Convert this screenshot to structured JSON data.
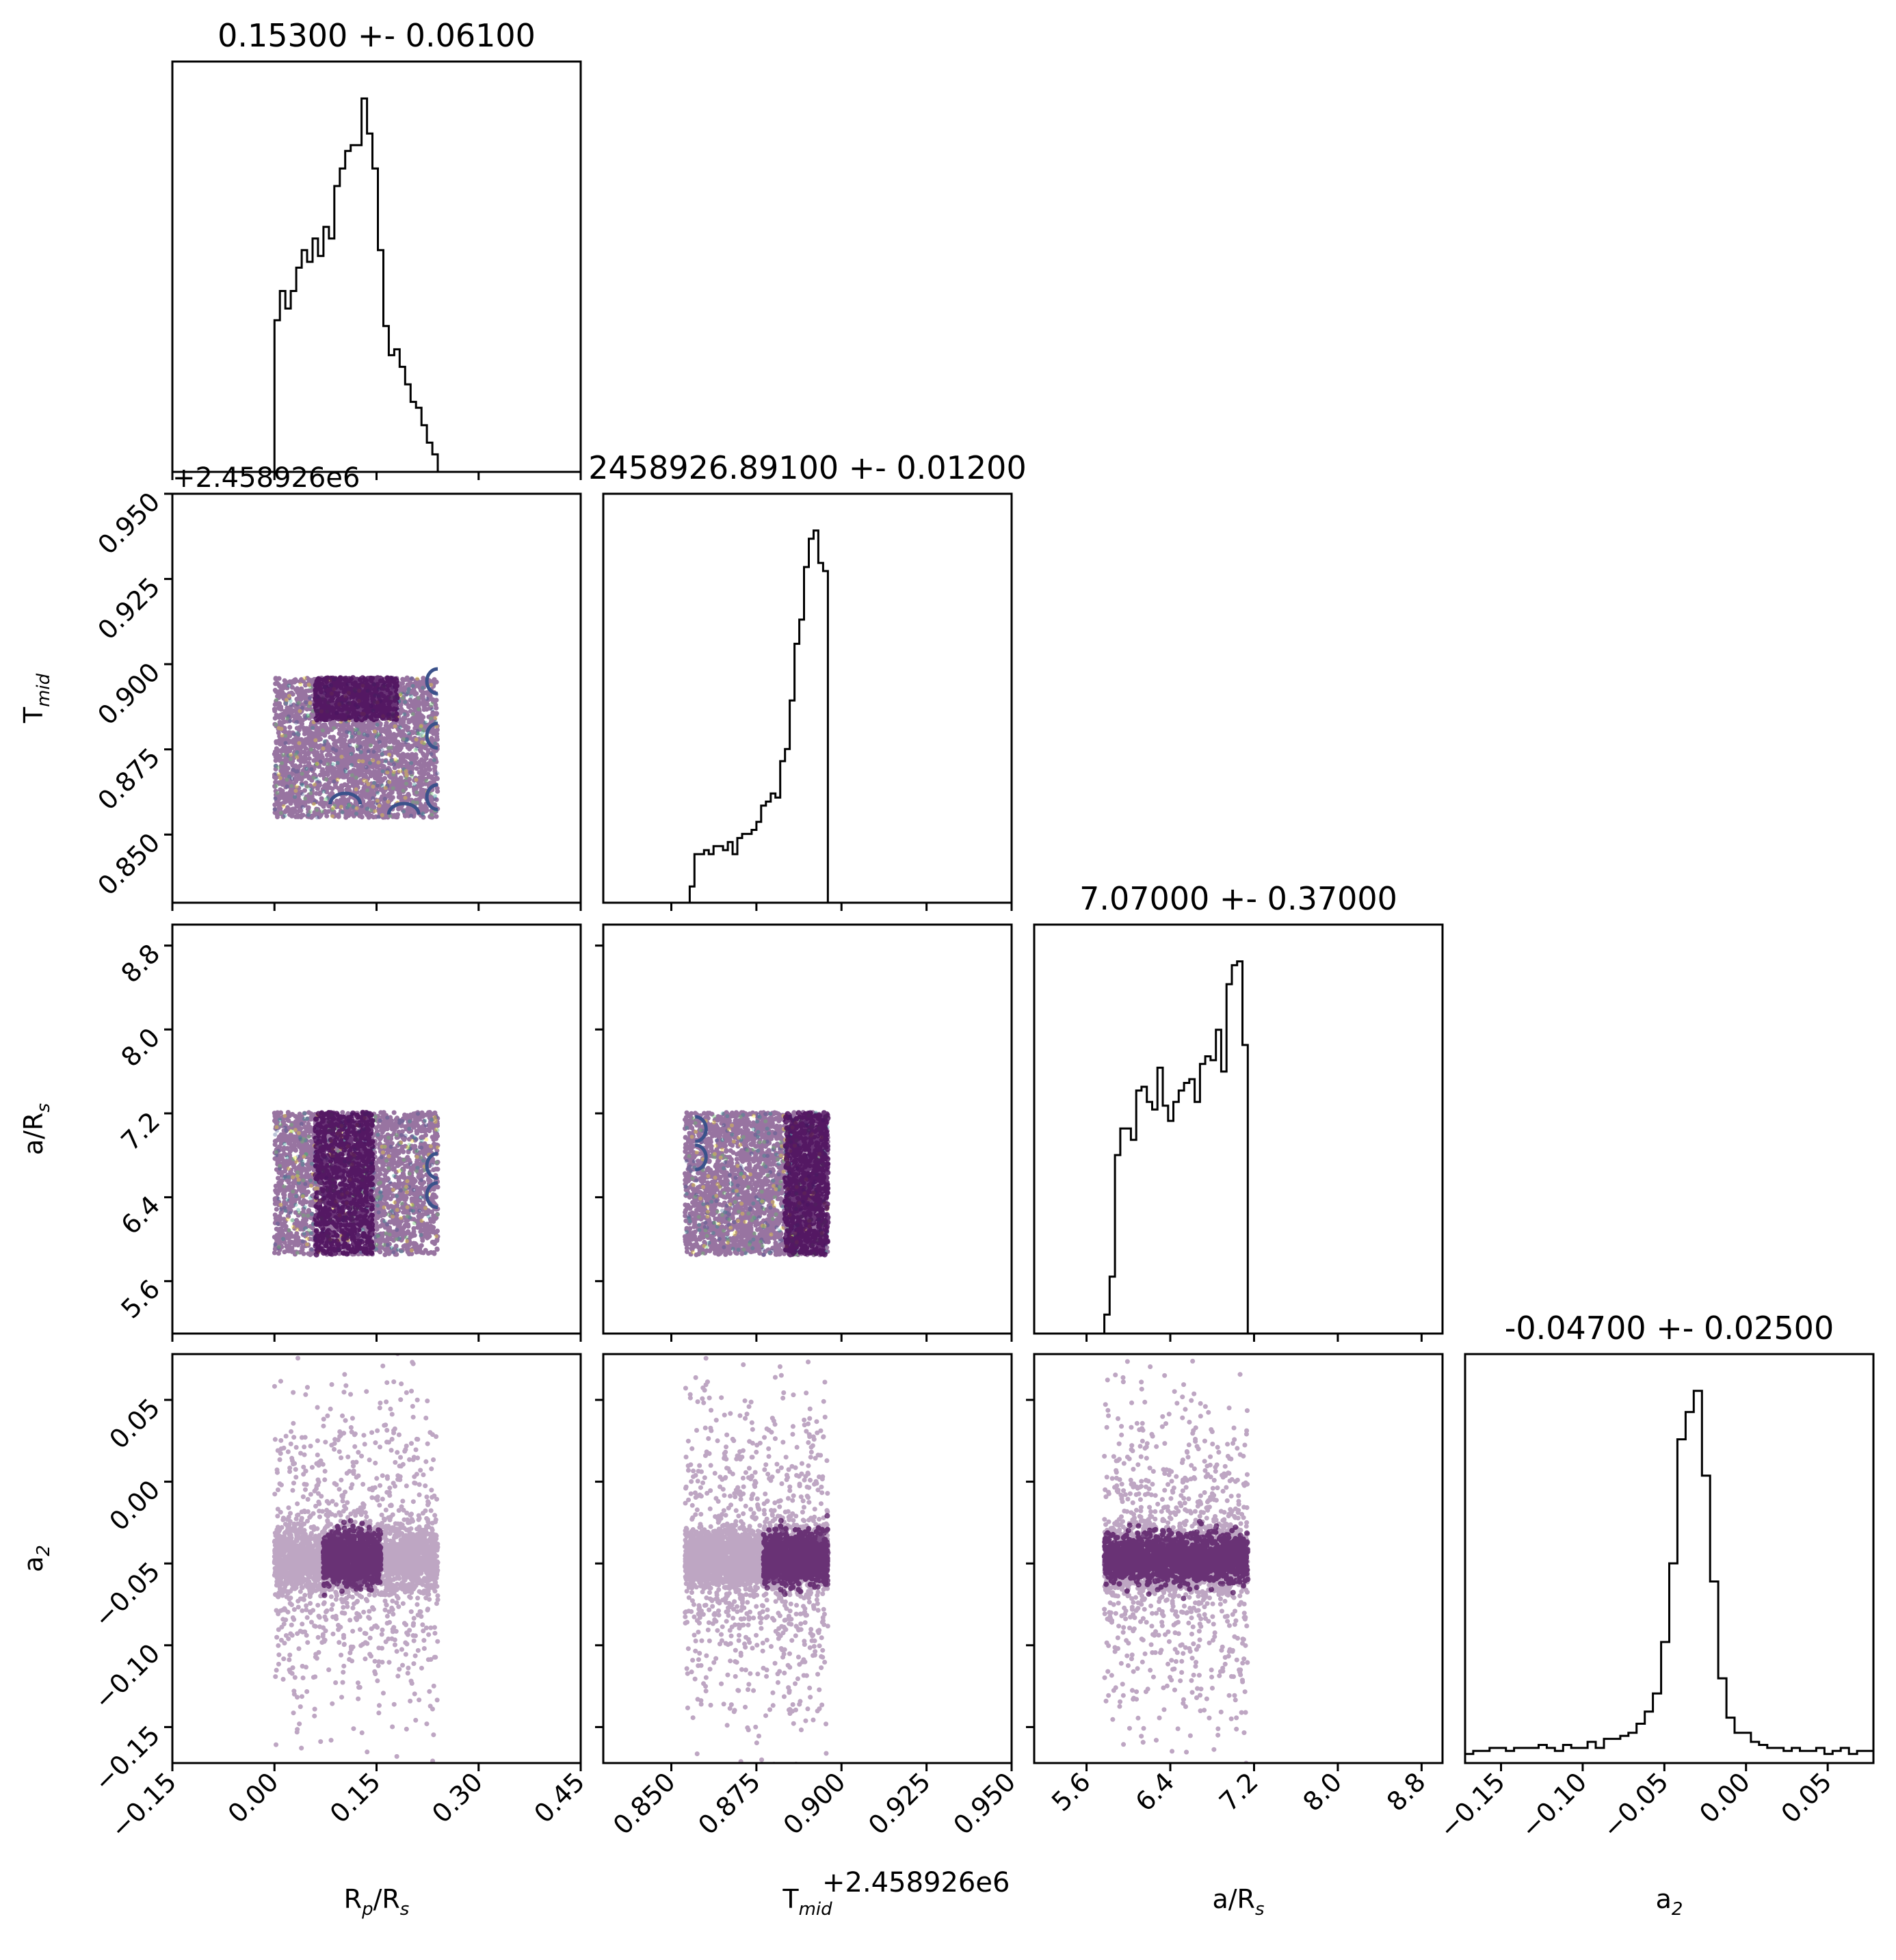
{
  "chart_data": {
    "type": "corner",
    "parameters": [
      {
        "key": "rp",
        "label": "R_p/R_s",
        "label_main": "R",
        "label_sub": "p",
        "label_rest": "/R",
        "label_sub2": "s",
        "range": [
          -0.15,
          0.45
        ],
        "ticks": [
          "−0.15",
          "0.00",
          "0.15",
          "0.30",
          "0.45"
        ],
        "tick_values": [
          -0.15,
          0.0,
          0.15,
          0.3,
          0.45
        ],
        "title": "0.15300 +- 0.06100",
        "offset_text": ""
      },
      {
        "key": "tmid",
        "label": "T_mid",
        "label_main": "T",
        "label_sub": "mid",
        "label_rest": "",
        "label_sub2": "",
        "range": [
          0.83,
          0.95
        ],
        "ticks": [
          "0.850",
          "0.875",
          "0.900",
          "0.925",
          "0.950"
        ],
        "tick_values": [
          0.85,
          0.875,
          0.9,
          0.925,
          0.95
        ],
        "title": "2458926.89100 +- 0.01200",
        "offset_text": "+2.458926e6"
      },
      {
        "key": "ars",
        "label": "a/R_s",
        "label_main": "a/R",
        "label_sub": "s",
        "label_rest": "",
        "label_sub2": "",
        "range": [
          5.1,
          9.0
        ],
        "ticks": [
          "5.6",
          "6.4",
          "7.2",
          "8.0",
          "8.8"
        ],
        "tick_values": [
          5.6,
          6.4,
          7.2,
          8.0,
          8.8
        ],
        "title": "7.07000 +- 0.37000",
        "offset_text": ""
      },
      {
        "key": "a2",
        "label": "a_2",
        "label_main": "a",
        "label_sub": "2",
        "label_rest": "",
        "label_sub2": "",
        "range": [
          -0.172,
          0.078
        ],
        "ticks": [
          "−0.15",
          "−0.10",
          "−0.05",
          "0.00",
          "0.05"
        ],
        "tick_values": [
          -0.15,
          -0.1,
          -0.05,
          0.0,
          0.05
        ],
        "title": "-0.04700 +- 0.02500",
        "offset_text": ""
      }
    ],
    "histograms": [
      {
        "param": "rp",
        "edges": [
          0.0,
          0.24
        ],
        "counts": [
          26,
          31,
          28,
          31,
          35,
          38,
          36,
          40,
          37,
          42,
          40,
          49,
          52,
          55,
          56,
          56,
          64,
          58,
          52,
          38,
          25,
          20,
          21,
          18,
          15,
          12,
          11,
          8,
          5,
          3
        ]
      },
      {
        "param": "tmid",
        "edges": [
          0.854,
          0.896
        ],
        "counts": [
          0,
          4,
          12,
          12,
          13,
          12,
          14,
          14,
          13,
          15,
          12,
          16,
          17,
          17,
          18,
          20,
          24,
          25,
          27,
          26,
          35,
          38,
          50,
          64,
          70,
          83,
          90,
          92,
          84,
          82
        ]
      },
      {
        "param": "ars",
        "edges": [
          5.77,
          7.14
        ],
        "counts": [
          5,
          15,
          47,
          54,
          54,
          51,
          64,
          65,
          61,
          59,
          70,
          60,
          56,
          61,
          64,
          66,
          67,
          61,
          71,
          73,
          72,
          80,
          69,
          92,
          97,
          98,
          76
        ]
      },
      {
        "param": "a2",
        "edges": [
          -0.172,
          0.078
        ],
        "counts": [
          3,
          4,
          4,
          5,
          5,
          4,
          5,
          5,
          5,
          6,
          5,
          4,
          6,
          5,
          5,
          7,
          5,
          8,
          8,
          9,
          10,
          13,
          17,
          23,
          40,
          66,
          107,
          116,
          123,
          95,
          60,
          28,
          15,
          10,
          10,
          7,
          6,
          5,
          5,
          4,
          5,
          4,
          4,
          5,
          3,
          4,
          5,
          3,
          4,
          4
        ]
      }
    ],
    "scatter_panels": [
      {
        "x": "rp",
        "y": "tmid",
        "style": "uniform-box",
        "x_range": [
          0.0,
          0.24
        ],
        "y_range": [
          0.855,
          0.896
        ]
      },
      {
        "x": "rp",
        "y": "ars",
        "style": "uniform-box",
        "x_range": [
          0.0,
          0.24
        ],
        "y_range": [
          5.85,
          7.21
        ]
      },
      {
        "x": "tmid",
        "y": "ars",
        "style": "uniform-box",
        "x_range": [
          0.854,
          0.896
        ],
        "y_range": [
          5.85,
          7.21
        ]
      },
      {
        "x": "rp",
        "y": "a2",
        "style": "gaussian-y",
        "x_range": [
          0.0,
          0.24
        ],
        "y_center": -0.047,
        "y_sigma": 0.025
      },
      {
        "x": "tmid",
        "y": "a2",
        "style": "gaussian-y",
        "x_range": [
          0.854,
          0.896
        ],
        "y_center": -0.047,
        "y_sigma": 0.025
      },
      {
        "x": "ars",
        "y": "a2",
        "style": "gaussian-y",
        "x_range": [
          5.77,
          7.14
        ],
        "y_center": -0.047,
        "y_sigma": 0.025
      }
    ],
    "colors": {
      "points": "#440154",
      "points_alt": [
        "#3b528b",
        "#21918c",
        "#5ec962",
        "#fde725"
      ],
      "contour": "#3b528b",
      "line": "#000000"
    }
  }
}
